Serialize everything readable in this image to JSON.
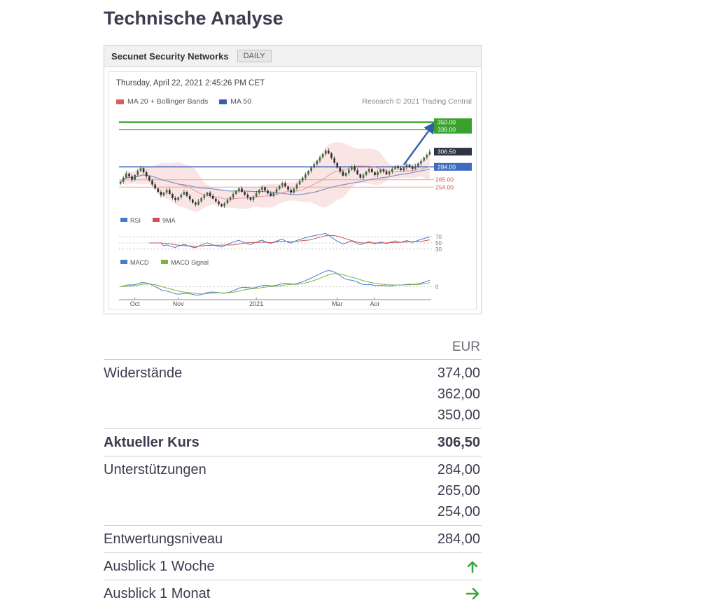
{
  "page": {
    "title": "Technische Analyse"
  },
  "chart": {
    "title": "Secunet Security Networks",
    "badge": "DAILY",
    "timestamp": "Thursday, April 22, 2021 2:45:26 PM CET",
    "research_credit": "Research © 2021 Trading Central",
    "legend": {
      "ma20": "MA 20 + Bollinger Bands",
      "ma50": "MA 50"
    },
    "rsi_legend": {
      "rsi": "RSI",
      "ma9": "9MA"
    },
    "macd_legend": {
      "macd": "MACD",
      "signal": "MACD Signal"
    }
  },
  "chart_data": {
    "type": "candlestick",
    "instrument": "Secunet Security Networks",
    "interval": "DAILY",
    "price_domain": [
      215,
      362
    ],
    "levels": {
      "resistance_lines": [
        350,
        339
      ],
      "current": 306.5,
      "support_line": 284,
      "minor_supports": [
        265,
        254
      ]
    },
    "right_labels": [
      {
        "value": "350.00",
        "style": "green"
      },
      {
        "value": "339.00",
        "style": "green"
      },
      {
        "value": "306.50",
        "style": "dark"
      },
      {
        "value": "284.00",
        "style": "blue"
      },
      {
        "value": "265.00",
        "style": "red-text"
      },
      {
        "value": "254.00",
        "style": "red-text"
      }
    ],
    "x_ticks": [
      {
        "label": "Oct",
        "index": 5
      },
      {
        "label": "Nov",
        "index": 20
      },
      {
        "label": "2021",
        "index": 47
      },
      {
        "label": "Mar",
        "index": 75
      },
      {
        "label": "Apr",
        "index": 88
      }
    ],
    "rsi_ticks": [
      70,
      50,
      30
    ],
    "macd_ticks": [
      0
    ],
    "closes": [
      262,
      268,
      274,
      270,
      265,
      272,
      278,
      282,
      276,
      270,
      264,
      258,
      252,
      247,
      242,
      246,
      250,
      244,
      238,
      235,
      239,
      243,
      247,
      241,
      236,
      231,
      228,
      233,
      238,
      242,
      246,
      241,
      237,
      233,
      229,
      226,
      230,
      235,
      239,
      244,
      248,
      252,
      247,
      243,
      239,
      235,
      240,
      245,
      250,
      254,
      249,
      245,
      241,
      246,
      251,
      256,
      260,
      255,
      250,
      246,
      252,
      258,
      263,
      268,
      273,
      278,
      283,
      288,
      293,
      298,
      303,
      308,
      304,
      297,
      290,
      283,
      277,
      271,
      275,
      280,
      285,
      279,
      273,
      268,
      272,
      277,
      281,
      276,
      272,
      276,
      280,
      277,
      273,
      277,
      281,
      285,
      282,
      279,
      283,
      287,
      284,
      281,
      285,
      289,
      293,
      298,
      302,
      306.5
    ]
  },
  "table": {
    "currency_header": "EUR",
    "rows": [
      {
        "label": "Widerstände",
        "values": [
          "374,00",
          "362,00",
          "350,00"
        ],
        "bold": false
      },
      {
        "label": "Aktueller Kurs",
        "values": [
          "306,50"
        ],
        "bold": true
      },
      {
        "label": "Unterstützungen",
        "values": [
          "284,00",
          "265,00",
          "254,00"
        ],
        "bold": false
      },
      {
        "label": "Entwertungsniveau",
        "values": [
          "284,00"
        ],
        "bold": false
      },
      {
        "label": "Ausblick 1 Woche",
        "icon": "arrow-up",
        "bold": false
      },
      {
        "label": "Ausblick 1 Monat",
        "icon": "arrow-right",
        "bold": false
      }
    ]
  },
  "colors": {
    "accent_green": "#3aa53a",
    "text_dark": "#3c3c50",
    "level_green": "#3aa02e",
    "level_blue": "#3f6bbf",
    "level_red": "#f0a0a0",
    "label_dark_box": "#2e3440",
    "label_red_text": "#d9534f",
    "arrow_blue": "#2f5fa8",
    "rsi_blue": "#4a7bc4",
    "rsi_red": "#d05050",
    "macd_blue": "#4a7bc4",
    "macd_green": "#7cb342",
    "band_pink": "#f3b8b8",
    "ma20_line": "#e39a9a",
    "ma50_line": "#7d96c9"
  }
}
